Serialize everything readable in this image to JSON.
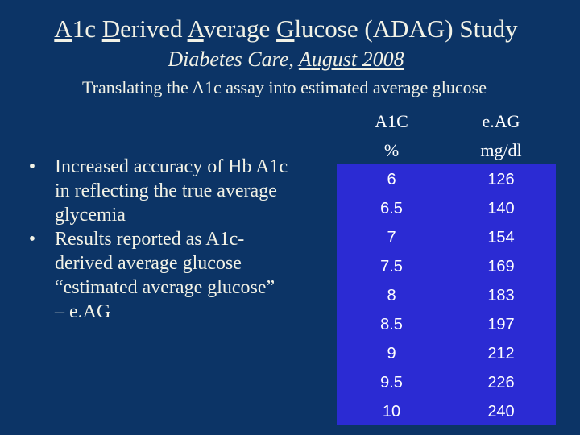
{
  "title": {
    "letters": [
      "A",
      "D",
      "A",
      "G"
    ],
    "parts": [
      "1c ",
      "erived ",
      "verage ",
      "lucose (ADAG) Study"
    ]
  },
  "subtitle": {
    "journal": "Diabetes Care, ",
    "date": "August 2008"
  },
  "tagline": "Translating the A1c assay into estimated average glucose",
  "bullets": [
    {
      "marker": "•",
      "lines": [
        "Increased accuracy of Hb A1c",
        "in reflecting the true average",
        "glycemia"
      ]
    },
    {
      "marker": "•",
      "lines": [
        "Results reported as A1c-",
        "derived average glucose",
        "“estimated average glucose”",
        "– e.AG"
      ]
    }
  ],
  "table": {
    "headers": [
      {
        "line1": "A1C",
        "line2": "%"
      },
      {
        "line1": "e.AG",
        "line2": "mg/dl"
      }
    ],
    "rows": [
      [
        "6",
        "126"
      ],
      [
        "6.5",
        "140"
      ],
      [
        "7",
        "154"
      ],
      [
        "7.5",
        "169"
      ],
      [
        "8",
        "183"
      ],
      [
        "8.5",
        "197"
      ],
      [
        "9",
        "212"
      ],
      [
        "9.5",
        "226"
      ],
      [
        "10",
        "240"
      ]
    ]
  },
  "colors": {
    "background": "#0c3466",
    "table_fill": "#2b2bd3",
    "text": "#f2f2e6"
  }
}
